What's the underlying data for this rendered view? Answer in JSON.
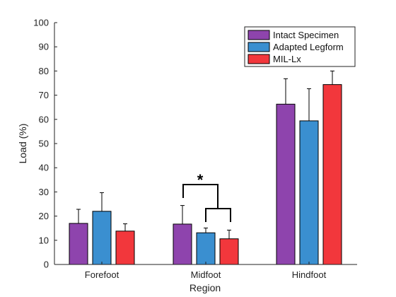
{
  "chart_data": {
    "type": "bar",
    "xlabel": "Region",
    "ylabel": "Load (%)",
    "ylim": [
      0,
      100
    ],
    "yticks": [
      0,
      10,
      20,
      30,
      40,
      50,
      60,
      70,
      80,
      90,
      100
    ],
    "categories": [
      "Forefoot",
      "Midfoot",
      "Hindfoot"
    ],
    "series": [
      {
        "name": "Intact Specimen",
        "color": "#8e44ad",
        "values": [
          17,
          16.7,
          66.3
        ],
        "errors": [
          5.8,
          7.7,
          10.5
        ]
      },
      {
        "name": "Adapted Legform",
        "color": "#3a8fd0",
        "values": [
          22,
          13.1,
          59.4
        ],
        "errors": [
          7.7,
          2.0,
          13.3
        ]
      },
      {
        "name": "MIL-Lx",
        "color": "#f2373c",
        "values": [
          13.8,
          10.6,
          74.4
        ],
        "errors": [
          3.0,
          3.6,
          5.6
        ]
      }
    ],
    "legend_position": "top-right",
    "grid": false,
    "annotations": [
      {
        "text": "*",
        "category": "Midfoot",
        "compares": [
          "Intact Specimen",
          "Adapted Legform / MIL-Lx pair"
        ]
      }
    ]
  }
}
